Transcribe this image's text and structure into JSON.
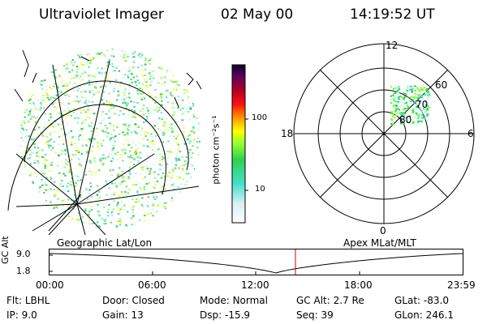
{
  "header": {
    "instrument": "Ultraviolet Imager",
    "date": "02 May 00",
    "time": "14:19:52 UT"
  },
  "colorbar": {
    "unit_label": "photon cm⁻²s⁻¹",
    "ticks": [
      "100",
      "10"
    ]
  },
  "polar_plot": {
    "label_top": "12",
    "label_left": "18",
    "label_right": "6",
    "label_bottom": "0",
    "lat_labels": [
      "60",
      "70",
      "80"
    ]
  },
  "map_labels": {
    "left": "Geographic Lat/Lon",
    "right": "Apex MLat/MLT"
  },
  "altitude_panel": {
    "axis_label": "GC Alt",
    "y_ticks": [
      "9.0",
      "1.8"
    ],
    "x_ticks": [
      "00:00",
      "06:00",
      "12:00",
      "18:00",
      "23:59"
    ]
  },
  "status": {
    "row1": [
      {
        "key": "Flt:",
        "value": "LBHL"
      },
      {
        "key": "Door:",
        "value": "Closed"
      },
      {
        "key": "Mode:",
        "value": "Normal"
      },
      {
        "key": "GC Alt:",
        "value": "2.7 Re"
      },
      {
        "key": "GLat:",
        "value": "-83.0"
      }
    ],
    "row2": [
      {
        "key": "IP:",
        "value": "9.0"
      },
      {
        "key": "Gain:",
        "value": "13"
      },
      {
        "key": "Dsp:",
        "value": "-15.9"
      },
      {
        "key": "Seq:",
        "value": "39"
      },
      {
        "key": "GLon:",
        "value": "246.1"
      }
    ]
  }
}
